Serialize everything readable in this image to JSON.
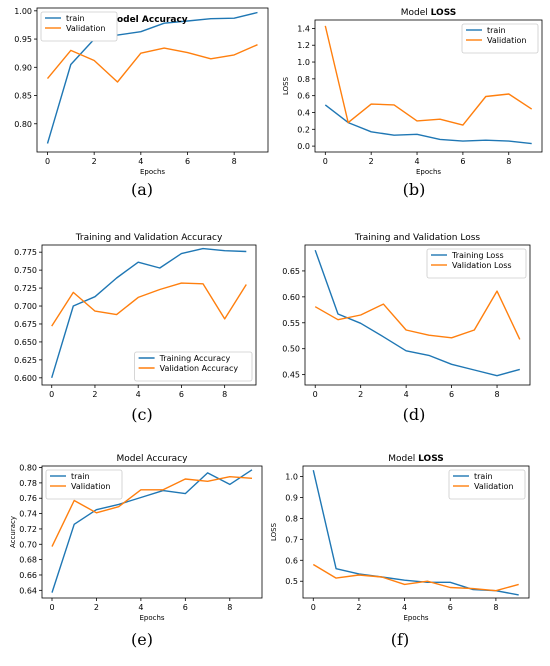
{
  "colors": {
    "train": "#1f77b4",
    "validation": "#ff7f0e"
  },
  "chart_data": [
    {
      "id": "a",
      "type": "line",
      "caption": "(a)",
      "title": "Model Accuracy",
      "title_weight": "bold",
      "title_position": "inside-top",
      "xlabel": "Epochs",
      "ylabel": "",
      "x": [
        0,
        1,
        2,
        3,
        4,
        5,
        6,
        7,
        8,
        9
      ],
      "xlim": [
        -0.45,
        9.45
      ],
      "ylim": [
        0.75,
        1.005
      ],
      "xticks": [
        0,
        2,
        4,
        6,
        8
      ],
      "yticks": [
        0.8,
        0.85,
        0.9,
        0.95,
        1.0
      ],
      "ytick_labels": [
        "0.80",
        "0.85",
        "0.90",
        "0.95",
        "1.00"
      ],
      "legend": "top-left",
      "grid": false,
      "series": [
        {
          "name": "train",
          "color_key": "train",
          "values": [
            0.765,
            0.905,
            0.95,
            0.957,
            0.963,
            0.978,
            0.982,
            0.986,
            0.987,
            0.997
          ]
        },
        {
          "name": "Validation",
          "color_key": "validation",
          "values": [
            0.88,
            0.93,
            0.912,
            0.874,
            0.925,
            0.934,
            0.926,
            0.915,
            0.922,
            0.94
          ]
        }
      ]
    },
    {
      "id": "b",
      "type": "line",
      "caption": "(b)",
      "title": "Model LOSS",
      "title_parts": [
        "Model ",
        "LOSS"
      ],
      "xlabel": "Epochs",
      "ylabel": "LOSS",
      "x": [
        0,
        1,
        2,
        3,
        4,
        5,
        6,
        7,
        8,
        9
      ],
      "xlim": [
        -0.45,
        9.45
      ],
      "ylim": [
        -0.07,
        1.5
      ],
      "xticks": [
        0,
        2,
        4,
        6,
        8
      ],
      "yticks": [
        0.0,
        0.2,
        0.4,
        0.6,
        0.8,
        1.0,
        1.2,
        1.4
      ],
      "ytick_labels": [
        "0.0",
        "0.2",
        "0.4",
        "0.6",
        "0.8",
        "1.0",
        "1.2",
        "1.4"
      ],
      "legend": "top-right",
      "grid": false,
      "series": [
        {
          "name": "train",
          "color_key": "train",
          "values": [
            0.49,
            0.28,
            0.17,
            0.13,
            0.14,
            0.08,
            0.06,
            0.07,
            0.06,
            0.03
          ]
        },
        {
          "name": "Validation",
          "color_key": "validation",
          "values": [
            1.43,
            0.28,
            0.5,
            0.49,
            0.3,
            0.32,
            0.25,
            0.59,
            0.62,
            0.44
          ]
        }
      ]
    },
    {
      "id": "c",
      "type": "line",
      "caption": "(c)",
      "title": "Training and Validation Accuracy",
      "xlabel": "",
      "ylabel": "",
      "x": [
        0,
        1,
        2,
        3,
        4,
        5,
        6,
        7,
        8,
        9
      ],
      "xlim": [
        -0.45,
        9.45
      ],
      "ylim": [
        0.59,
        0.785
      ],
      "xticks": [
        0,
        2,
        4,
        6,
        8
      ],
      "yticks": [
        0.6,
        0.625,
        0.65,
        0.675,
        0.7,
        0.725,
        0.75,
        0.775
      ],
      "ytick_labels": [
        "0.600",
        "0.625",
        "0.650",
        "0.675",
        "0.700",
        "0.725",
        "0.750",
        "0.775"
      ],
      "legend": "bottom-right",
      "grid": false,
      "series": [
        {
          "name": "Training Accuracy",
          "color_key": "train",
          "values": [
            0.6,
            0.7,
            0.713,
            0.739,
            0.761,
            0.753,
            0.773,
            0.78,
            0.777,
            0.776
          ]
        },
        {
          "name": "Validation Accuracy",
          "color_key": "validation",
          "values": [
            0.672,
            0.719,
            0.693,
            0.688,
            0.712,
            0.723,
            0.732,
            0.731,
            0.682,
            0.73
          ]
        }
      ]
    },
    {
      "id": "d",
      "type": "line",
      "caption": "(d)",
      "title": "Training and Validation Loss",
      "xlabel": "",
      "ylabel": "",
      "x": [
        0,
        1,
        2,
        3,
        4,
        5,
        6,
        7,
        8,
        9
      ],
      "xlim": [
        -0.45,
        9.45
      ],
      "ylim": [
        0.43,
        0.7
      ],
      "xticks": [
        0,
        2,
        4,
        6,
        8
      ],
      "yticks": [
        0.45,
        0.5,
        0.55,
        0.6,
        0.65
      ],
      "ytick_labels": [
        "0.45",
        "0.50",
        "0.55",
        "0.60",
        "0.65"
      ],
      "legend": "top-right",
      "grid": false,
      "series": [
        {
          "name": "Training Loss",
          "color_key": "train",
          "values": [
            0.69,
            0.567,
            0.549,
            0.523,
            0.496,
            0.487,
            0.47,
            0.459,
            0.448,
            0.46
          ]
        },
        {
          "name": "Validation Loss",
          "color_key": "validation",
          "values": [
            0.581,
            0.556,
            0.565,
            0.586,
            0.536,
            0.526,
            0.521,
            0.536,
            0.611,
            0.518
          ]
        }
      ]
    },
    {
      "id": "e",
      "type": "line",
      "caption": "(e)",
      "title": "Model Accuracy",
      "xlabel": "Epochs",
      "ylabel": "Accuracy",
      "x": [
        0,
        1,
        2,
        3,
        4,
        5,
        6,
        7,
        8,
        9
      ],
      "xlim": [
        -0.45,
        9.45
      ],
      "ylim": [
        0.63,
        0.802
      ],
      "xticks": [
        0,
        2,
        4,
        6,
        8
      ],
      "yticks": [
        0.64,
        0.66,
        0.68,
        0.7,
        0.72,
        0.74,
        0.76,
        0.78,
        0.8
      ],
      "ytick_labels": [
        "0.64",
        "0.66",
        "0.68",
        "0.70",
        "0.72",
        "0.74",
        "0.76",
        "0.78",
        "0.80"
      ],
      "legend": "top-left",
      "grid": false,
      "series": [
        {
          "name": "train",
          "color_key": "train",
          "values": [
            0.637,
            0.726,
            0.745,
            0.752,
            0.761,
            0.77,
            0.766,
            0.793,
            0.778,
            0.797
          ]
        },
        {
          "name": "Validation",
          "color_key": "validation",
          "values": [
            0.697,
            0.757,
            0.741,
            0.749,
            0.771,
            0.771,
            0.785,
            0.782,
            0.788,
            0.786
          ]
        }
      ]
    },
    {
      "id": "f",
      "type": "line",
      "caption": "(f)",
      "title": "Model LOSS",
      "title_parts": [
        "Model ",
        "LOSS"
      ],
      "xlabel": "Epochs",
      "ylabel": "LOSS",
      "x": [
        0,
        1,
        2,
        3,
        4,
        5,
        6,
        7,
        8,
        9
      ],
      "xlim": [
        -0.45,
        9.45
      ],
      "ylim": [
        0.42,
        1.05
      ],
      "xticks": [
        0,
        2,
        4,
        6,
        8
      ],
      "yticks": [
        0.5,
        0.6,
        0.7,
        0.8,
        0.9,
        1.0
      ],
      "ytick_labels": [
        "0.5",
        "0.6",
        "0.7",
        "0.8",
        "0.9",
        "1.0"
      ],
      "legend": "top-right",
      "grid": false,
      "series": [
        {
          "name": "train",
          "color_key": "train",
          "values": [
            1.03,
            0.56,
            0.535,
            0.52,
            0.505,
            0.495,
            0.495,
            0.46,
            0.455,
            0.435
          ]
        },
        {
          "name": "Validation",
          "color_key": "validation",
          "values": [
            0.58,
            0.515,
            0.53,
            0.52,
            0.485,
            0.5,
            0.47,
            0.465,
            0.455,
            0.485
          ]
        }
      ]
    }
  ]
}
